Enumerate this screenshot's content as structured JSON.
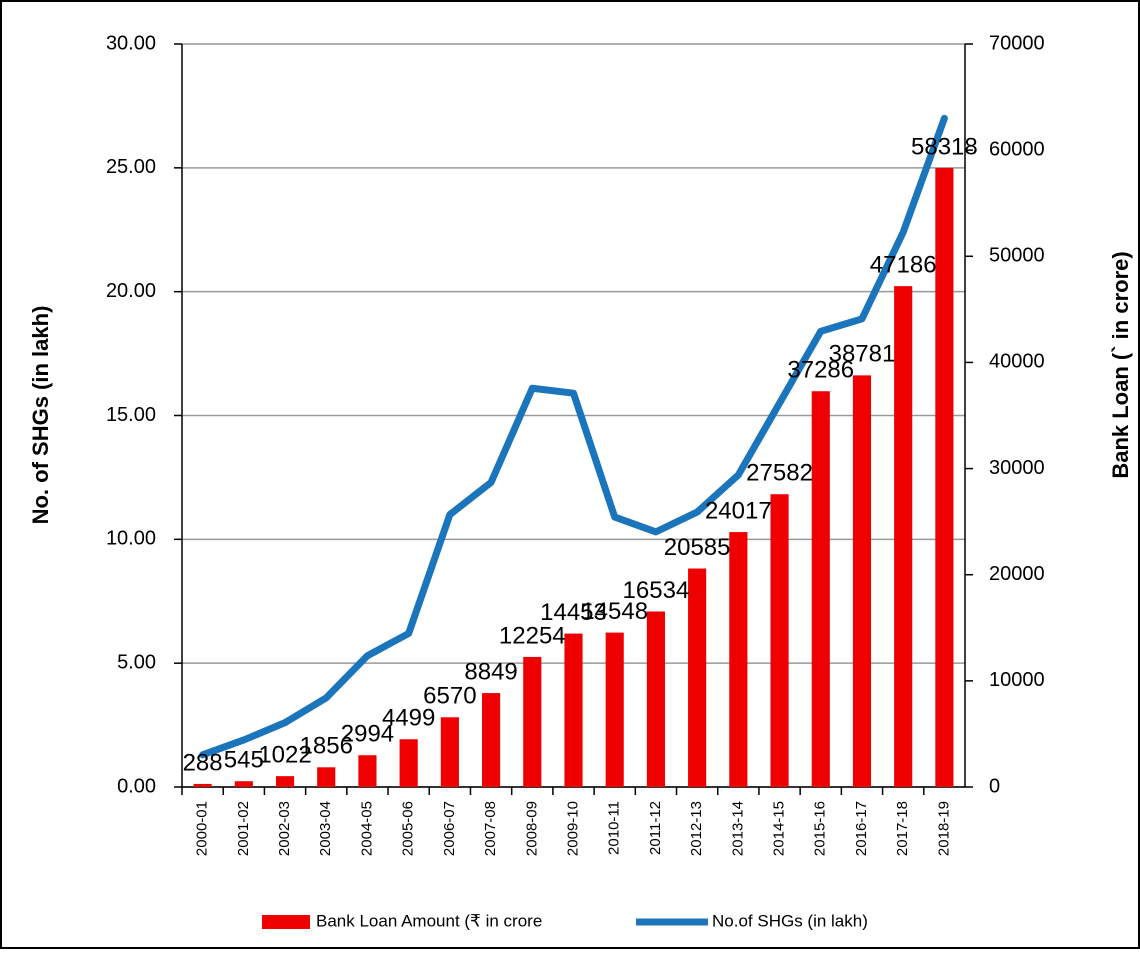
{
  "chart_data": {
    "type": "bar_line",
    "categories": [
      "2000-01",
      "2001-02",
      "2002-03",
      "2003-04",
      "2004-05",
      "2005-06",
      "2006-07",
      "2007-08",
      "2008-09",
      "2009-10",
      "2010-11",
      "2011-12",
      "2012-13",
      "2013-14",
      "2014-15",
      "2015-16",
      "2016-17",
      "2017-18",
      "2018-19"
    ],
    "series": [
      {
        "name": "Bank Loan Amount (₹ in crore",
        "type": "bar",
        "color": "#ee0000",
        "axis": "y2",
        "values": [
          288,
          545,
          1022,
          1856,
          2994,
          4499,
          6570,
          8849,
          12254,
          14453,
          14548,
          16534,
          20585,
          24017,
          27582,
          37286,
          38781,
          47186,
          58318
        ]
      },
      {
        "name": "No.of SHGs (in lakh)",
        "type": "line",
        "color": "#1b75bc",
        "values": [
          1.3,
          1.9,
          2.6,
          3.6,
          5.3,
          6.2,
          11.0,
          12.3,
          16.1,
          15.9,
          10.9,
          10.3,
          11.1,
          12.6,
          15.5,
          18.4,
          18.9,
          22.4,
          27.0
        ]
      }
    ],
    "y_label": "No. of SHGs (in lakh)",
    "y2_label": "Bank Loan (` in crore)",
    "ylim": [
      0,
      30
    ],
    "yticks": [
      {
        "value": 0,
        "label": "0.00"
      },
      {
        "value": 5,
        "label": "5.00"
      },
      {
        "value": 10,
        "label": "10.00"
      },
      {
        "value": 15,
        "label": "15.00"
      },
      {
        "value": 20,
        "label": "20.00"
      },
      {
        "value": 25,
        "label": "25.00"
      },
      {
        "value": 30,
        "label": "30.00"
      }
    ],
    "y2lim": [
      0,
      70000
    ],
    "y2ticks": [
      0,
      10000,
      20000,
      30000,
      40000,
      50000,
      60000,
      70000
    ],
    "grid": true,
    "legend": "bottom"
  }
}
